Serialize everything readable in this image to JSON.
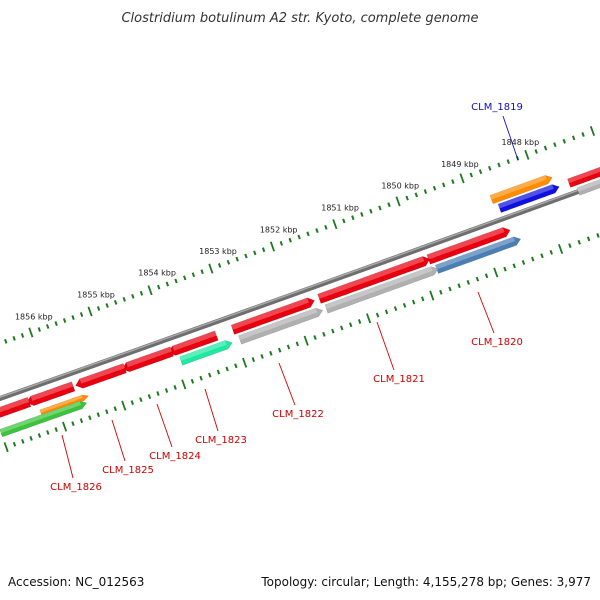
{
  "title": "Clostridium botulinum A2 str. Kyoto, complete genome",
  "footer": {
    "accession": "Accession: NC_012563",
    "summary": "Topology: circular; Length: 4,155,278 bp; Genes: 3,977"
  },
  "colors": {
    "backbone": "#8a8a8a",
    "tick": "#1e7a1e",
    "cds": "#e8000e",
    "gray": "#b0b0b0",
    "orange": "#ff8c00",
    "blue": "#1010e0",
    "steel": "#4a7fb5",
    "teal": "#1de9a0",
    "green": "#3cc33c",
    "label_red": "#cc0000",
    "label_blue": "#1010c0"
  },
  "ticks": [
    {
      "label": "1848 kbp"
    },
    {
      "label": "1849 kbp"
    },
    {
      "label": "1850 kbp"
    },
    {
      "label": "1851 kbp"
    },
    {
      "label": "1852 kbp"
    },
    {
      "label": "1853 kbp"
    },
    {
      "label": "1854 kbp"
    },
    {
      "label": "1855 kbp"
    },
    {
      "label": "1856 kbp"
    }
  ],
  "gene_labels": [
    {
      "text": "CLM_1819",
      "color": "label_blue"
    },
    {
      "text": "CLM_1820",
      "color": "label_red"
    },
    {
      "text": "CLM_1821",
      "color": "label_red"
    },
    {
      "text": "CLM_1822",
      "color": "label_red"
    },
    {
      "text": "CLM_1823",
      "color": "label_red"
    },
    {
      "text": "CLM_1824",
      "color": "label_red"
    },
    {
      "text": "CLM_1825",
      "color": "label_red"
    },
    {
      "text": "CLM_1826",
      "color": "label_red"
    }
  ]
}
